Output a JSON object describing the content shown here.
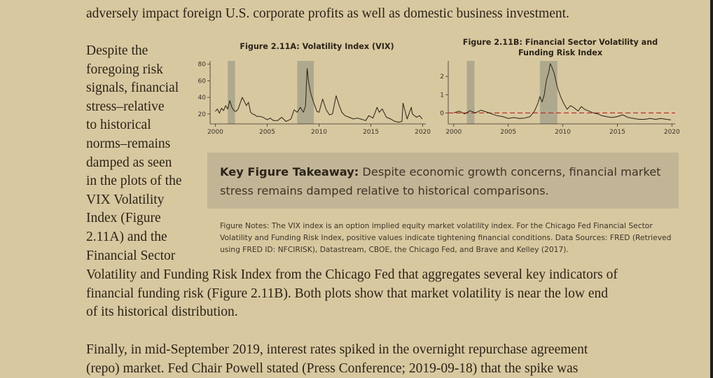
{
  "text": {
    "line_top": "adversely impact foreign U.S. corporate profits as well as domestic business investment.",
    "wrap_lines": [
      "Despite the",
      "foregoing risk",
      "signals, financial",
      "stress–relative",
      "to historical",
      "norms–remains",
      "damped as seen",
      "in the plots of the",
      "VIX Volatility",
      "Index (Figure",
      "2.11A) and the",
      "Financial Sector"
    ],
    "full_lines": [
      "Volatility and Funding Risk Index from the Chicago Fed that aggregates several key indicators of",
      "financial funding risk (Figure 2.11B). Both plots show that market volatility is near the low end",
      "of its historical distribution."
    ],
    "para2_lines": [
      "Finally, in mid-September 2019, interest rates spiked in the overnight repurchase agreement",
      "(repo) market. Fed Chair Powell stated (Press Conference; 2019-09-18) that the spike was"
    ]
  },
  "takeaway": {
    "label": "Key Figure Takeaway:",
    "text": "Despite economic growth concerns, financial market stress remains damped relative to historical comparisons."
  },
  "notes": "Figure Notes: The VIX index is an option implied equity market volatility index. For the Chicago Fed Financial Sector Volatility and Funding Risk Index, positive values indicate tightening financial conditions. Data Sources: FRED (Retrieved using FRED ID: NFCIRISK), Datastream, CBOE, the Chicago Fed, and Brave and Kelley (2017).",
  "chart_data": [
    {
      "type": "line",
      "title": "Figure 2.11A: Volatility Index (VIX)",
      "xlabel": "",
      "ylabel": "",
      "xlim": [
        1999.5,
        2020.3
      ],
      "ylim": [
        8,
        84
      ],
      "xticks": [
        2000,
        2005,
        2010,
        2015,
        2020
      ],
      "yticks": [
        20,
        40,
        60,
        80
      ],
      "recessions": [
        [
          2001.2,
          2001.9
        ],
        [
          2007.9,
          2009.5
        ]
      ],
      "series": [
        {
          "name": "VIX",
          "x": [
            2000.0,
            2000.2,
            2000.4,
            2000.6,
            2000.8,
            2001.0,
            2001.2,
            2001.4,
            2001.6,
            2001.8,
            2002.0,
            2002.2,
            2002.4,
            2002.6,
            2002.8,
            2003.0,
            2003.2,
            2003.4,
            2003.6,
            2003.8,
            2004.0,
            2004.3,
            2004.6,
            2005.0,
            2005.3,
            2005.6,
            2006.0,
            2006.4,
            2006.8,
            2007.0,
            2007.3,
            2007.6,
            2007.9,
            2008.2,
            2008.5,
            2008.7,
            2008.85,
            2009.0,
            2009.2,
            2009.5,
            2009.8,
            2010.0,
            2010.35,
            2010.7,
            2011.0,
            2011.3,
            2011.65,
            2011.9,
            2012.2,
            2012.5,
            2012.9,
            2013.3,
            2013.7,
            2014.0,
            2014.5,
            2014.8,
            2015.2,
            2015.6,
            2015.8,
            2016.1,
            2016.5,
            2016.9,
            2017.3,
            2017.7,
            2018.0,
            2018.1,
            2018.5,
            2018.9,
            2019.0,
            2019.4,
            2019.7,
            2019.95
          ],
          "y": [
            23,
            26,
            21,
            27,
            24,
            30,
            26,
            36,
            28,
            24,
            23,
            26,
            33,
            40,
            35,
            30,
            34,
            22,
            20,
            19,
            17,
            17,
            16,
            13,
            15,
            12,
            12,
            16,
            11,
            12,
            14,
            25,
            22,
            28,
            22,
            30,
            75,
            58,
            45,
            33,
            23,
            22,
            38,
            25,
            19,
            20,
            42,
            32,
            22,
            18,
            16,
            14,
            15,
            14,
            12,
            18,
            15,
            28,
            22,
            26,
            16,
            14,
            11,
            10,
            11,
            33,
            14,
            28,
            20,
            16,
            18,
            14
          ]
        }
      ]
    },
    {
      "type": "line",
      "title": "Figure 2.11B: Financial Sector Volatility and Funding Risk Index",
      "xlabel": "",
      "ylabel": "",
      "xlim": [
        1999.5,
        2020.3
      ],
      "ylim": [
        -0.6,
        2.85
      ],
      "xticks": [
        2000,
        2005,
        2010,
        2015,
        2020
      ],
      "yticks": [
        0,
        1,
        2
      ],
      "recessions": [
        [
          2001.2,
          2001.9
        ],
        [
          2007.9,
          2009.5
        ]
      ],
      "reference_line": 0,
      "series": [
        {
          "name": "Risk Index",
          "x": [
            2000.0,
            2000.5,
            2001.0,
            2001.5,
            2002.0,
            2002.5,
            2003.0,
            2003.5,
            2004.0,
            2004.5,
            2005.0,
            2005.5,
            2006.0,
            2006.5,
            2007.0,
            2007.4,
            2007.7,
            2007.9,
            2008.1,
            2008.3,
            2008.5,
            2008.7,
            2008.85,
            2009.0,
            2009.2,
            2009.5,
            2009.8,
            2010.1,
            2010.4,
            2010.7,
            2011.0,
            2011.4,
            2011.7,
            2012.0,
            2012.4,
            2012.8,
            2013.2,
            2013.6,
            2014.0,
            2014.5,
            2015.0,
            2015.5,
            2016.0,
            2016.5,
            2017.0,
            2017.5,
            2018.0,
            2018.5,
            2019.0,
            2019.5,
            2019.9
          ],
          "y": [
            0.0,
            0.1,
            -0.05,
            0.12,
            0.0,
            0.15,
            0.05,
            -0.05,
            -0.15,
            -0.2,
            -0.3,
            -0.25,
            -0.3,
            -0.28,
            -0.2,
            0.1,
            0.5,
            0.9,
            0.6,
            1.0,
            1.8,
            2.2,
            2.7,
            2.5,
            2.2,
            1.4,
            0.9,
            0.5,
            0.2,
            0.4,
            0.3,
            0.1,
            0.35,
            0.2,
            0.1,
            0.0,
            -0.05,
            -0.15,
            -0.2,
            -0.25,
            -0.2,
            -0.1,
            -0.25,
            -0.3,
            -0.35,
            -0.35,
            -0.3,
            -0.35,
            -0.3,
            -0.35,
            -0.38
          ]
        }
      ]
    }
  ]
}
